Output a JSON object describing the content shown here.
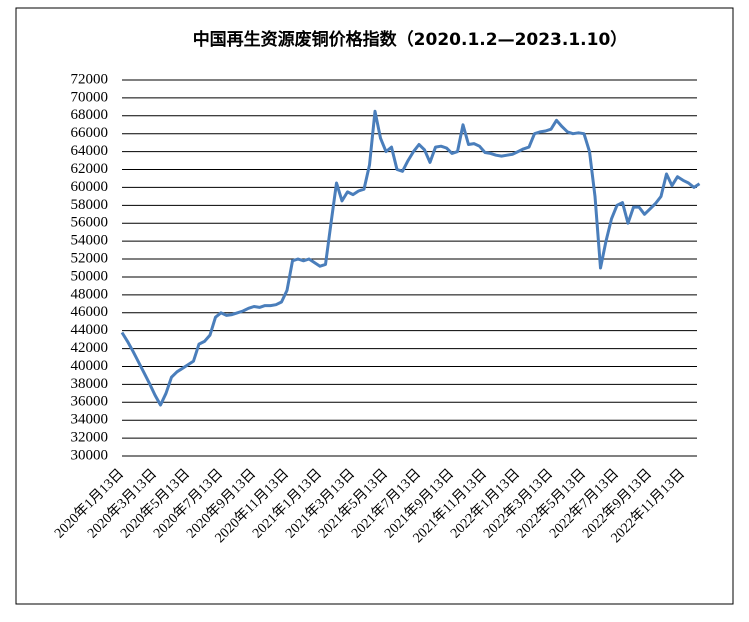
{
  "chart_data": {
    "type": "line",
    "title": "中国再生资源废铜价格指数（2020.1.2—2023.1.10）",
    "categories": [
      "2020年1月13日",
      null,
      null,
      null,
      null,
      null,
      "2020年3月13日",
      null,
      null,
      null,
      null,
      null,
      "2020年5月13日",
      null,
      null,
      null,
      null,
      null,
      "2020年7月13日",
      null,
      null,
      null,
      null,
      null,
      "2020年9月13日",
      null,
      null,
      null,
      null,
      null,
      "2020年11月13日",
      null,
      null,
      null,
      null,
      null,
      "2021年1月13日",
      null,
      null,
      null,
      null,
      null,
      "2021年3月13日",
      null,
      null,
      null,
      null,
      null,
      "2021年5月13日",
      null,
      null,
      null,
      null,
      null,
      "2021年7月13日",
      null,
      null,
      null,
      null,
      null,
      "2021年9月13日",
      null,
      null,
      null,
      null,
      null,
      "2021年11月13日",
      null,
      null,
      null,
      null,
      null,
      "2022年1月13日",
      null,
      null,
      null,
      null,
      null,
      "2022年3月13日",
      null,
      null,
      null,
      null,
      null,
      "2022年5月13日",
      null,
      null,
      null,
      null,
      null,
      "2022年7月13日",
      null,
      null,
      null,
      null,
      null,
      "2022年9月13日",
      null,
      null,
      null,
      null,
      null,
      "2022年11月13日",
      null,
      null,
      null
    ],
    "series": [
      {
        "color": "#4a7ebb",
        "values": [
          43800,
          42800,
          41700,
          40500,
          39300,
          38100,
          36800,
          35700,
          37000,
          38800,
          39400,
          39800,
          40200,
          40600,
          42500,
          42800,
          43500,
          45500,
          46000,
          45700,
          45800,
          46000,
          46200,
          46500,
          46700,
          46600,
          46800,
          46800,
          46900,
          47200,
          48500,
          51800,
          52000,
          51800,
          52000,
          51600,
          51200,
          51400,
          56000,
          60500,
          58500,
          59500,
          59200,
          59600,
          59800,
          62500,
          68500,
          65500,
          64000,
          64500,
          62000,
          61800,
          63000,
          64000,
          64800,
          64200,
          62800,
          64500,
          64600,
          64400,
          63800,
          64000,
          67000,
          64800,
          64900,
          64600,
          63900,
          63800,
          63600,
          63500,
          63600,
          63700,
          64000,
          64300,
          64500,
          66000,
          66200,
          66300,
          66500,
          67500,
          66800,
          66200,
          66000,
          66100,
          66000,
          64000,
          59000,
          51000,
          54000,
          56500,
          58000,
          58300,
          56000,
          57800,
          57800,
          57000,
          57600,
          58200,
          59000,
          61500,
          60200,
          61200,
          60800,
          60500,
          60000,
          60400
        ]
      }
    ],
    "ylim": [
      30000,
      72000
    ],
    "yticks": [
      30000,
      32000,
      34000,
      36000,
      38000,
      40000,
      42000,
      44000,
      46000,
      48000,
      50000,
      52000,
      54000,
      56000,
      58000,
      60000,
      62000,
      64000,
      66000,
      68000,
      70000,
      72000
    ],
    "grid": true
  }
}
